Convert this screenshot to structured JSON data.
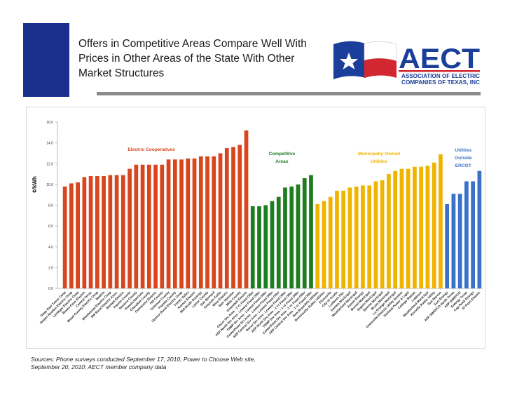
{
  "slide": {
    "title": "Offers in Competitive Areas Compare Well With Prices in Other Areas of the State With Other Market Structures",
    "sources": "Sources: Phone surveys conducted September 17, 2010; Power to Choose Web site, September 20, 2010; AECT member company data"
  },
  "logo": {
    "wordmark": "AECT",
    "line1": "ASSOCIATION OF ELECTRIC",
    "line2": "COMPANIES OF TEXAS, INC"
  },
  "colors": {
    "title_block": "#1a2f8c",
    "electric_cooperatives": "#d9461e",
    "competitive_areas": "#1e7d1e",
    "municipally_owned": "#f0b400",
    "utilities_outside_ercot": "#3a72c8"
  },
  "chart_data": {
    "type": "bar",
    "ylabel": "¢/kWh",
    "ylim": [
      0,
      16
    ],
    "yticks": [
      "0.0",
      "2.0",
      "4.0",
      "6.0",
      "8.0",
      "10.0",
      "12.0",
      "14.0",
      "16.0"
    ],
    "grid": false,
    "groups": [
      {
        "name": "Electric Cooperatives",
        "label_lines": [
          "Electric Cooperatives"
        ],
        "color": "#d9461e",
        "categories": [
          "Deep East Texas Coop",
          "Jasper-Newton Electric Coop",
          "Lyntegar Electric Coop",
          "Bowie-Cass Electric",
          "Central Texas",
          "Wood County Electric Coop",
          "Medina",
          "Bluebonnet Electric Coop",
          "SW Rural Electric Assn.",
          "Bartlett Electric",
          "Fannin County",
          "Navarro County",
          "Panola-Harrison",
          "Cherokee County",
          "Comanche Electric",
          "Hill County",
          "Coleman County",
          "Fayette County",
          "Upshur Rural Electric Coop",
          "Trinity Valley",
          "Karnes Electric",
          "Mid-South Synergy",
          "Lamar County",
          "San Bernard",
          "Grayson-Collin",
          "Wise Electric",
          "Sam Houston",
          "Mills County",
          "Greenbelt Electric"
        ],
        "values": [
          9.8,
          10.1,
          10.2,
          10.7,
          10.8,
          10.8,
          10.8,
          10.9,
          10.9,
          10.9,
          11.5,
          11.9,
          11.9,
          11.9,
          11.9,
          11.9,
          12.4,
          12.4,
          12.4,
          12.5,
          12.5,
          12.7,
          12.7,
          12.7,
          13.0,
          13.5,
          13.6,
          13.8,
          15.2
        ]
      },
      {
        "name": "Competitive Areas",
        "label_lines": [
          "Competitive",
          "Areas"
        ],
        "color": "#1e7d1e",
        "categories": [
          "Oncor Srv Area - 1 Yr Fixed Offer",
          "AEP North Srv Area - Lowest Fixed Offer",
          "TNMP Srv Area - Lowest Fixed Offer",
          "CenterPoint Srv Area - Lowest Fixed Offer",
          "AEP Central Srv Area - Lowest Fixed Offer",
          "Oncor Srv Area - Lowest Fixed Offer",
          "AEP North Srv Area - 1 Yr Fixed Offer",
          "TNMP Srv Area - 1 Yr Fixed Offer",
          "CenterPoint Srv Area - 1 Yr Fixed Offer",
          "AEP Central Srv Area - 1 Yr Fixed Offer"
        ],
        "values": [
          7.9,
          7.9,
          8.0,
          8.4,
          8.8,
          9.7,
          9.8,
          10.0,
          10.6,
          10.9
        ]
      },
      {
        "name": "Municipally-Owned Utilities",
        "label_lines": [
          "Municipally-Owned",
          "Utilities"
        ],
        "color": "#f0b400",
        "categories": [
          "New Braunfels Utilities",
          "Brownsville Public Utilities",
          "Floresville",
          "City of Austin",
          "Lubbock P&L",
          "Denton Municipal",
          "Weatherford Municipal",
          "Austin Energy",
          "Burnet Municipal",
          "Seguin Municipal",
          "Boerne Municipal",
          "Bryan Municipal",
          "La Grange Municipal",
          "Greenville Electric Utility System",
          "Garland Power & Light",
          "College Station",
          "Lubbock",
          "Weatherford Municipal",
          "Kerrville Public Utility",
          "San Marcos"
        ],
        "values": [
          8.1,
          8.4,
          8.8,
          9.4,
          9.4,
          9.7,
          9.8,
          9.9,
          9.9,
          10.3,
          10.4,
          11.0,
          11.3,
          11.5,
          11.5,
          11.7,
          11.7,
          11.8,
          12.1,
          12.9
        ]
      },
      {
        "name": "Utilities Outside ERCOT",
        "label_lines": [
          "Utilities",
          "Outside",
          "ERCOT"
        ],
        "color": "#3a72c8",
        "categories": [
          "Xcel Energy",
          "AEP SWEPCO North Texas",
          "AEP SWEPCO",
          "Entergy Texas",
          "Cap Rock Energy",
          "El Paso Electric"
        ],
        "values": [
          8.1,
          9.1,
          9.1,
          10.3,
          10.3,
          11.3
        ]
      }
    ]
  }
}
